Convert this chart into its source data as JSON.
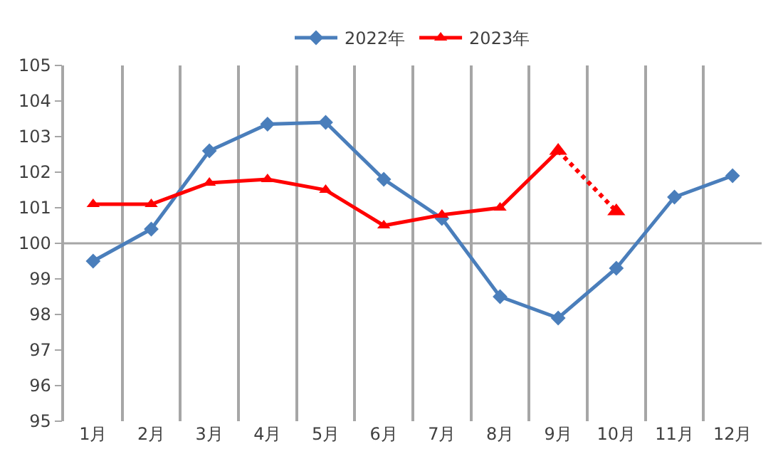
{
  "chart_data": {
    "type": "line",
    "categories": [
      "1月",
      "2月",
      "3月",
      "4月",
      "5月",
      "6月",
      "7月",
      "8月",
      "9月",
      "10月",
      "11月",
      "12月"
    ],
    "series": [
      {
        "name": "2022年",
        "color": "#4a7ebb",
        "marker": "diamond",
        "values": [
          99.5,
          100.4,
          102.6,
          103.35,
          103.4,
          101.8,
          100.7,
          98.5,
          97.9,
          99.3,
          101.3,
          101.9
        ]
      },
      {
        "name": "2023年",
        "color": "#ff0000",
        "marker": "triangle",
        "values": [
          101.1,
          101.1,
          101.7,
          101.8,
          101.5,
          100.5,
          100.8,
          101.0,
          102.6,
          null,
          null,
          null
        ]
      },
      {
        "color": "#ff0000",
        "marker": "triangle",
        "line_style": "dotted",
        "values": [
          null,
          null,
          null,
          null,
          null,
          null,
          null,
          null,
          102.6,
          100.9,
          null,
          null
        ]
      }
    ],
    "ylim": [
      95,
      105
    ],
    "yticks": [
      95,
      96,
      97,
      98,
      99,
      100,
      101,
      102,
      103,
      104,
      105
    ],
    "grid": "x",
    "legend": "top",
    "ref_lines": [
      {
        "axis": "y",
        "value": 100,
        "color": "#a6a6a6"
      }
    ]
  }
}
